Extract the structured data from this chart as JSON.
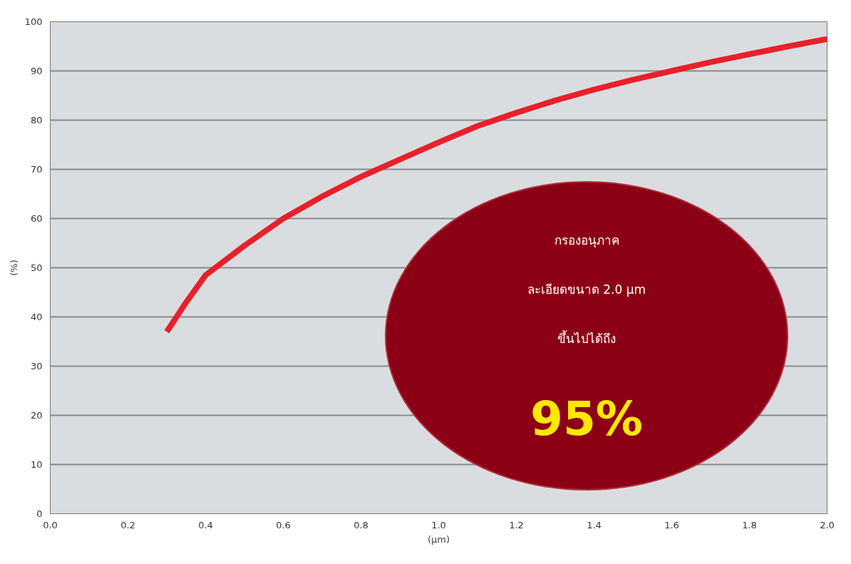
{
  "chart_data": {
    "type": "line",
    "xlabel": "(µm)",
    "ylabel": "(%)",
    "x": [
      0.3,
      0.35,
      0.4,
      0.5,
      0.6,
      0.7,
      0.8,
      0.9,
      1.0,
      1.1,
      1.2,
      1.3,
      1.4,
      1.5,
      1.6,
      1.7,
      1.8,
      1.9,
      2.0
    ],
    "series": [
      {
        "color": "#e8202a",
        "values": [
          37,
          43,
          48.5,
          54.5,
          60,
          64.5,
          68.5,
          72,
          75.5,
          78.8,
          81.5,
          84,
          86.2,
          88.2,
          90,
          91.8,
          93.4,
          95,
          96.5
        ]
      }
    ],
    "xlim": [
      0,
      2
    ],
    "ylim": [
      0,
      100
    ],
    "xticks": [
      {
        "value": 0,
        "label": "0.0"
      },
      0.2,
      0.4,
      0.6,
      0.8,
      {
        "value": 1,
        "label": "1.0"
      },
      1.2,
      1.4,
      1.6,
      1.8,
      {
        "value": 2,
        "label": "2.0"
      }
    ],
    "yticks": [
      0,
      10,
      20,
      30,
      40,
      50,
      60,
      70,
      80,
      90,
      100
    ],
    "grid": "y",
    "marker": "none",
    "line_style": "solid",
    "annotations": [
      "กรองอนุภาค",
      "ละเอียดขนาด 2.0 µm",
      "ขึ้นไปได้ถึง",
      "95%"
    ]
  }
}
